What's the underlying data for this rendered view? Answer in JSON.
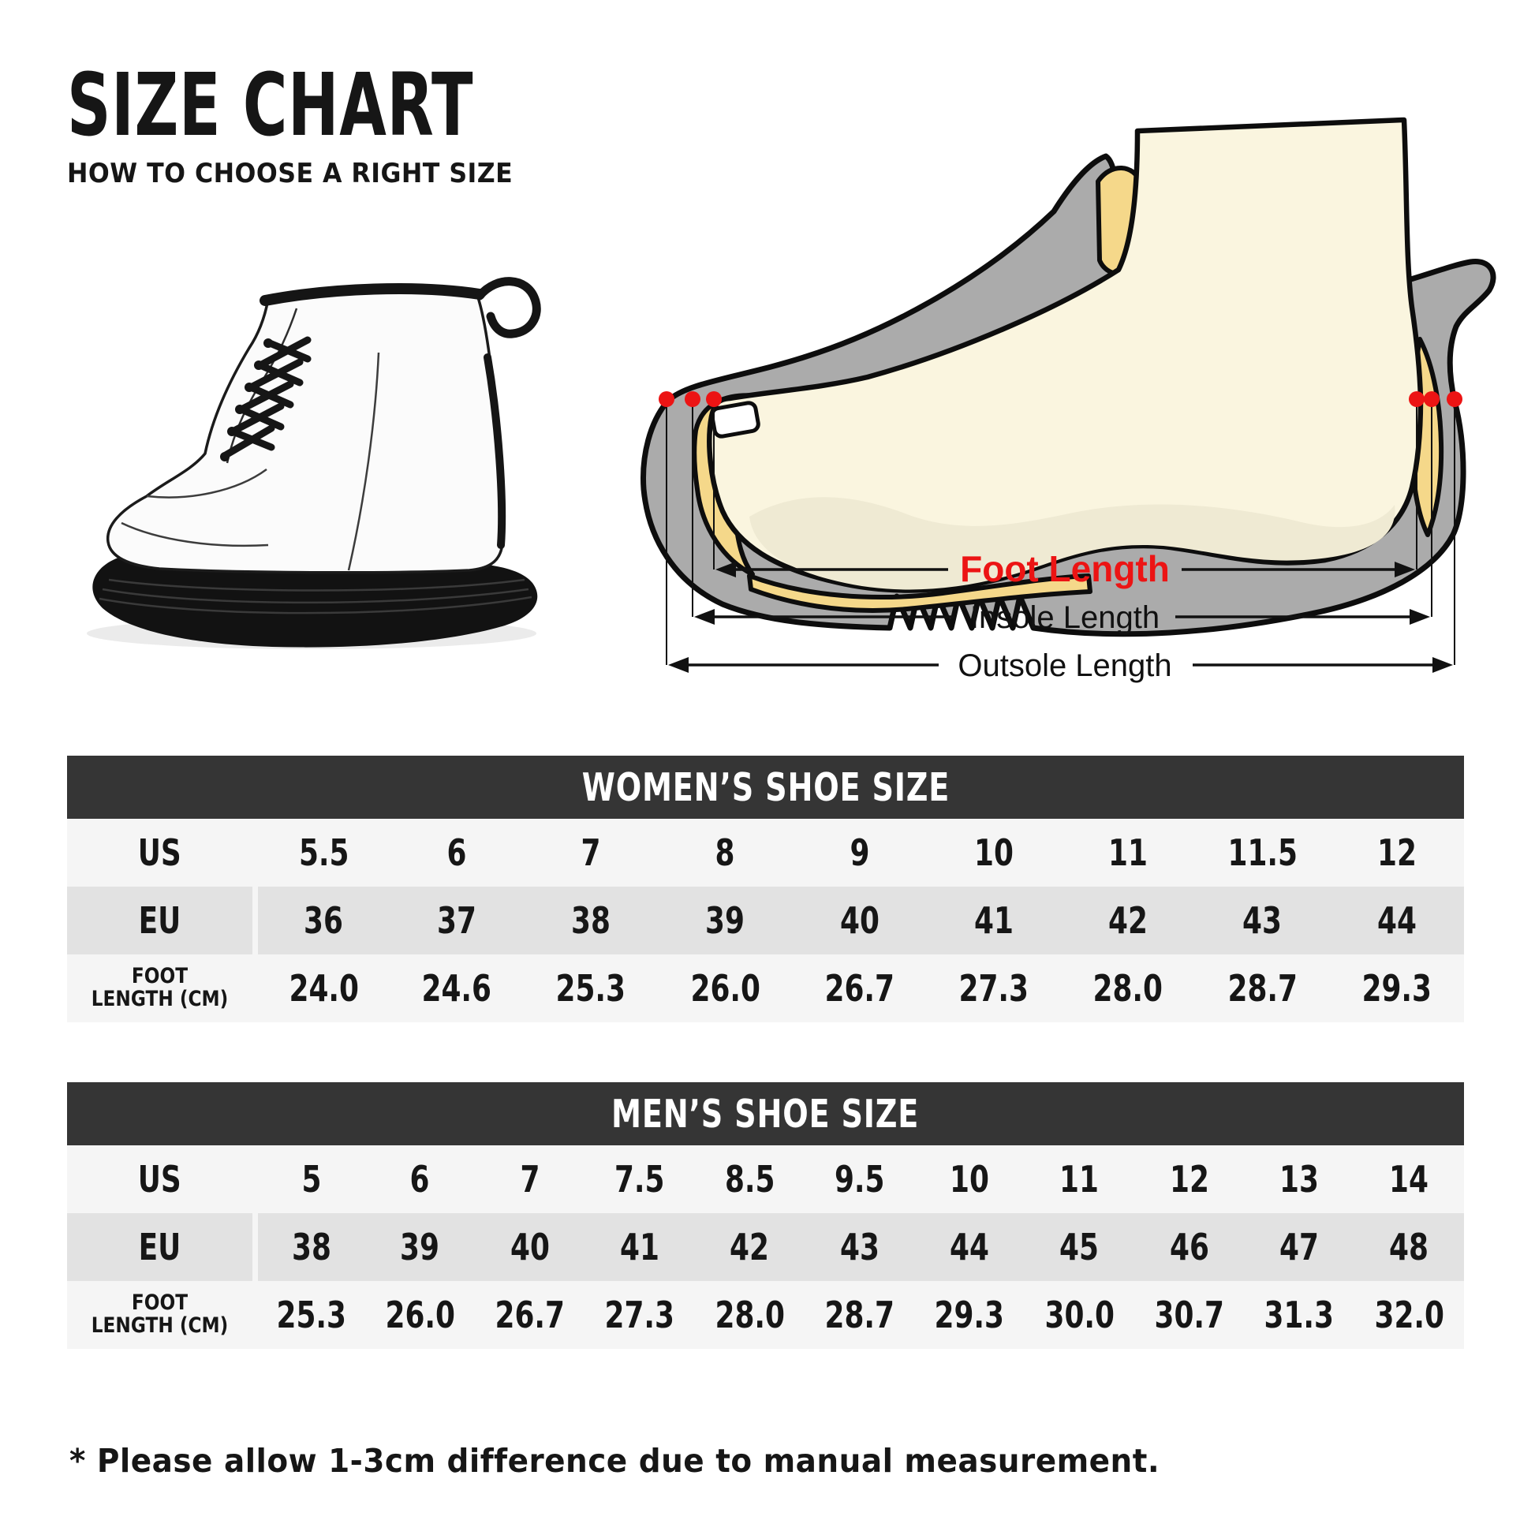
{
  "header": {
    "title": "SIZE CHART",
    "subtitle": "HOW TO CHOOSE A RIGHT SIZE"
  },
  "diagram": {
    "labels": {
      "foot": "Foot Length",
      "insole": "Insole Length",
      "outsole": "Outsole Length"
    }
  },
  "tables": [
    {
      "id": "women",
      "title": "WOMEN’S SHOE SIZE",
      "rows": [
        {
          "label_lines": [
            "US"
          ],
          "values": [
            "5.5",
            "6",
            "7",
            "8",
            "9",
            "10",
            "11",
            "11.5",
            "12"
          ]
        },
        {
          "label_lines": [
            "EU"
          ],
          "values": [
            "36",
            "37",
            "38",
            "39",
            "40",
            "41",
            "42",
            "43",
            "44"
          ]
        },
        {
          "label_lines": [
            "FOOT",
            "LENGTH (CM)"
          ],
          "values": [
            "24.0",
            "24.6",
            "25.3",
            "26.0",
            "26.7",
            "27.3",
            "28.0",
            "28.7",
            "29.3"
          ]
        }
      ]
    },
    {
      "id": "men",
      "title": "MEN’S SHOE SIZE",
      "rows": [
        {
          "label_lines": [
            "US"
          ],
          "values": [
            "5",
            "6",
            "7",
            "7.5",
            "8.5",
            "9.5",
            "10",
            "11",
            "12",
            "13",
            "14"
          ]
        },
        {
          "label_lines": [
            "EU"
          ],
          "values": [
            "38",
            "39",
            "40",
            "41",
            "42",
            "43",
            "44",
            "45",
            "46",
            "47",
            "48"
          ]
        },
        {
          "label_lines": [
            "FOOT",
            "LENGTH (CM)"
          ],
          "values": [
            "25.3",
            "26.0",
            "26.7",
            "27.3",
            "28.0",
            "28.7",
            "29.3",
            "30.0",
            "30.7",
            "31.3",
            "32.0"
          ]
        }
      ]
    }
  ],
  "footnote": "* Please allow 1-3cm difference due to manual measurement.",
  "colors": {
    "header_bar": "#353535",
    "row_light": "#f5f5f5",
    "row_dark": "#e2e2e2",
    "text": "#161616",
    "accent_red": "#ec1414",
    "shoe_gray": "#ababab",
    "lining_yellow": "#f5d88a",
    "skin": "#faf5df",
    "skin_shadow": "#efead3",
    "outline": "#0d0d0d",
    "boot_black": "#121212",
    "boot_white": "#fbfbfb"
  }
}
